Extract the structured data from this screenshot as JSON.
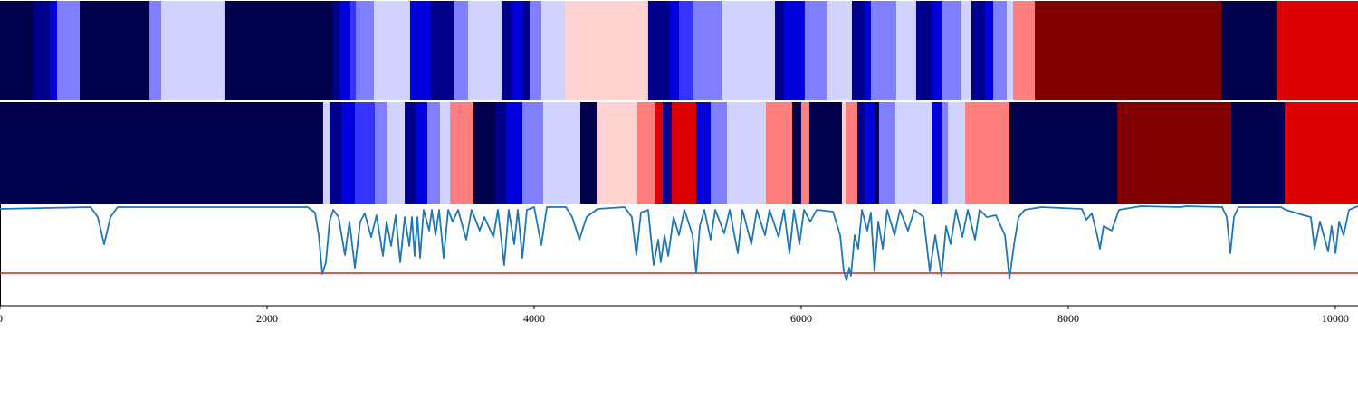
{
  "chart_data": [
    {
      "type": "heatmap",
      "xlim": [
        0,
        10170
      ],
      "colormap": [
        "#00004c",
        "#00008c",
        "#0000dc",
        "#3535ff",
        "#7f7fff",
        "#d2d2ff",
        "#ffd2d2",
        "#ff7f7f",
        "#dc0000",
        "#800000"
      ],
      "edges": [
        0,
        258,
        373,
        427,
        597,
        1119,
        1207,
        1681,
        2488,
        2543,
        2624,
        2665,
        2800,
        3071,
        3221,
        3397,
        3505,
        3756,
        3838,
        3919,
        3966,
        4054,
        4231,
        4854,
        5017,
        5085,
        5193,
        5404,
        5804,
        5871,
        6027,
        6190,
        6380,
        6475,
        6522,
        6712,
        6861,
        6983,
        7051,
        7194,
        7275,
        7377,
        7438,
        7539,
        7587,
        7750,
        9146,
        9560,
        10170
      ],
      "values": [
        0,
        1,
        2,
        4,
        0,
        4,
        5,
        0,
        1,
        2,
        3,
        4,
        5,
        2,
        1,
        4,
        5,
        1,
        2,
        1,
        4,
        5,
        6,
        1,
        2,
        3,
        4,
        5,
        1,
        2,
        4,
        5,
        1,
        2,
        4,
        5,
        1,
        2,
        4,
        5,
        1,
        2,
        4,
        5,
        7,
        9,
        0,
        8
      ]
    },
    {
      "type": "heatmap",
      "xlim": [
        0,
        10170
      ],
      "colormap": [
        "#00004c",
        "#00008c",
        "#0000dc",
        "#3535ff",
        "#7f7fff",
        "#d2d2ff",
        "#ffd2d2",
        "#ff7f7f",
        "#dc0000",
        "#800000"
      ],
      "edges": [
        0,
        2420,
        2468,
        2556,
        2658,
        2807,
        2895,
        3031,
        3112,
        3200,
        3295,
        3370,
        3546,
        3709,
        3790,
        3912,
        4068,
        4346,
        4468,
        4773,
        4902,
        4963,
        5031,
        5214,
        5322,
        5444,
        5736,
        5933,
        6000,
        6061,
        6305,
        6333,
        6421,
        6475,
        6550,
        6583,
        6705,
        6977,
        7051,
        7099,
        7228,
        7560,
        8367,
        9221,
        9621,
        10170
      ],
      "values": [
        0,
        5,
        1,
        2,
        3,
        4,
        5,
        1,
        2,
        4,
        5,
        7,
        0,
        1,
        2,
        4,
        5,
        0,
        6,
        7,
        8,
        1,
        8,
        2,
        4,
        5,
        7,
        0,
        7,
        0,
        6,
        7,
        1,
        2,
        0,
        4,
        5,
        2,
        4,
        5,
        7,
        0,
        9,
        0,
        8
      ]
    },
    {
      "type": "line",
      "xlim": [
        0,
        10170
      ],
      "ylim": [
        0,
        112
      ],
      "color": "#1f77b4",
      "hline": 36,
      "hline_color": "#e41a1c",
      "xticks": [
        0,
        2000,
        4000,
        6000,
        8000,
        10000
      ],
      "x": [
        0,
        678,
        732,
        780,
        827,
        881,
        2305,
        2359,
        2387,
        2414,
        2441,
        2468,
        2495,
        2536,
        2583,
        2617,
        2658,
        2698,
        2732,
        2780,
        2820,
        2868,
        2895,
        2929,
        2963,
        2997,
        3031,
        3065,
        3085,
        3105,
        3126,
        3146,
        3173,
        3214,
        3234,
        3261,
        3288,
        3322,
        3356,
        3390,
        3431,
        3492,
        3532,
        3593,
        3627,
        3695,
        3729,
        3776,
        3810,
        3851,
        3878,
        3912,
        3946,
        4000,
        4054,
        4095,
        4238,
        4285,
        4339,
        4393,
        4475,
        4678,
        4732,
        4766,
        4800,
        4854,
        4895,
        4929,
        4949,
        4977,
        5004,
        5044,
        5085,
        5126,
        5187,
        5214,
        5241,
        5275,
        5322,
        5356,
        5424,
        5465,
        5526,
        5560,
        5627,
        5668,
        5729,
        5763,
        5831,
        5871,
        5912,
        5946,
        5987,
        6021,
        6068,
        6116,
        6238,
        6292,
        6319,
        6339,
        6360,
        6373,
        6400,
        6427,
        6455,
        6495,
        6522,
        6549,
        6577,
        6611,
        6644,
        6699,
        6739,
        6800,
        6848,
        6916,
        6963,
        7004,
        7051,
        7085,
        7119,
        7160,
        7207,
        7248,
        7302,
        7336,
        7390,
        7458,
        7526,
        7560,
        7594,
        7628,
        7675,
        7797,
        8102,
        8136,
        8177,
        8217,
        8238,
        8265,
        8326,
        8380,
        8543,
        8848,
        8882,
        9153,
        9187,
        9214,
        9241,
        9275,
        9594,
        9628,
        9763,
        9817,
        9845,
        9885,
        9946,
        9973,
        10001,
        10028,
        10062,
        10102,
        10170
      ],
      "values": [
        107,
        109,
        98,
        68,
        98,
        109,
        109,
        103,
        78,
        35,
        48,
        93,
        106,
        98,
        56,
        93,
        42,
        93,
        102,
        76,
        100,
        55,
        93,
        66,
        100,
        48,
        98,
        66,
        98,
        55,
        98,
        53,
        106,
        83,
        106,
        78,
        106,
        53,
        106,
        93,
        106,
        73,
        106,
        83,
        98,
        76,
        106,
        45,
        106,
        68,
        106,
        53,
        106,
        109,
        67,
        109,
        109,
        98,
        73,
        98,
        107,
        109,
        98,
        56,
        103,
        106,
        45,
        73,
        48,
        78,
        55,
        98,
        78,
        106,
        78,
        36,
        88,
        106,
        73,
        106,
        80,
        106,
        58,
        106,
        68,
        106,
        78,
        106,
        76,
        106,
        58,
        106,
        68,
        106,
        93,
        106,
        104,
        78,
        38,
        28,
        42,
        33,
        78,
        63,
        106,
        83,
        103,
        38,
        93,
        63,
        106,
        78,
        106,
        83,
        106,
        98,
        38,
        78,
        33,
        88,
        68,
        106,
        76,
        106,
        73,
        106,
        98,
        100,
        78,
        30,
        68,
        98,
        106,
        109,
        107,
        95,
        102,
        78,
        63,
        88,
        83,
        106,
        110,
        109,
        110,
        109,
        98,
        58,
        98,
        109,
        109,
        106,
        100,
        98,
        63,
        93,
        60,
        88,
        58,
        93,
        78,
        106,
        110
      ]
    }
  ]
}
